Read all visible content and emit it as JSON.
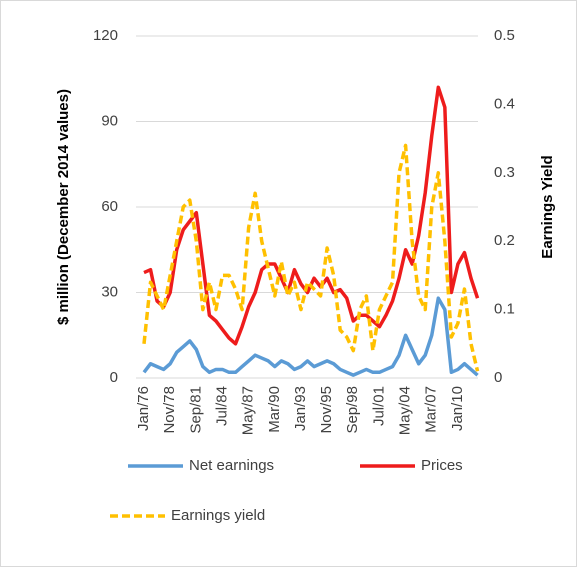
{
  "chart_data": {
    "type": "line",
    "y_label": "$ million (December 2014 values)",
    "y2_label": "Earnings Yield",
    "categories": [
      "Jan/76",
      null,
      null,
      null,
      "Nov/78",
      null,
      null,
      null,
      "Sep/81",
      null,
      null,
      null,
      "Jul/84",
      null,
      null,
      null,
      "May/87",
      null,
      null,
      null,
      "Mar/90",
      null,
      null,
      null,
      "Jan/93",
      null,
      null,
      null,
      "Nov/95",
      null,
      null,
      null,
      "Sep/98",
      null,
      null,
      null,
      "Jul/01",
      null,
      null,
      null,
      "May/04",
      null,
      null,
      null,
      "Mar/07",
      null,
      null,
      null,
      "Jan/10",
      null,
      null,
      null
    ],
    "series": [
      {
        "name": "Net earnings",
        "color": "#5b9bd5",
        "values": [
          2,
          5,
          4,
          3,
          5,
          9,
          11,
          13,
          10,
          4,
          2,
          3,
          3,
          2,
          2,
          4,
          6,
          8,
          7,
          6,
          4,
          6,
          5,
          3,
          4,
          6,
          4,
          5,
          6,
          5,
          3,
          2,
          1,
          2,
          3,
          2,
          2,
          3,
          4,
          8,
          15,
          10,
          5,
          8,
          15,
          28,
          24,
          2,
          3,
          5,
          3,
          1
        ]
      },
      {
        "name": "Prices",
        "color": "#ee1c1c",
        "values": [
          37,
          38,
          27,
          25,
          30,
          45,
          52,
          55,
          58,
          40,
          22,
          20,
          17,
          14,
          12,
          18,
          25,
          30,
          38,
          40,
          40,
          35,
          30,
          38,
          33,
          30,
          35,
          32,
          35,
          30,
          31,
          28,
          20,
          22,
          22,
          20,
          18,
          22,
          27,
          35,
          45,
          40,
          50,
          65,
          85,
          102,
          95,
          30,
          40,
          44,
          35,
          28
        ]
      },
      {
        "name": "Earnings yield",
        "color": "#ffc000",
        "dashed": true,
        "axis": "y2",
        "values": [
          0.05,
          0.14,
          0.12,
          0.1,
          0.15,
          0.2,
          0.25,
          0.26,
          0.2,
          0.1,
          0.14,
          0.1,
          0.15,
          0.15,
          0.13,
          0.1,
          0.22,
          0.27,
          0.2,
          0.16,
          0.12,
          0.17,
          0.12,
          0.14,
          0.1,
          0.14,
          0.13,
          0.12,
          0.19,
          0.15,
          0.07,
          0.06,
          0.04,
          0.1,
          0.12,
          0.04,
          0.1,
          0.12,
          0.14,
          0.3,
          0.34,
          0.2,
          0.12,
          0.1,
          0.25,
          0.3,
          0.2,
          0.06,
          0.08,
          0.13,
          0.05,
          0.01
        ]
      }
    ],
    "ylim": [
      0,
      120
    ],
    "yticks": [
      0,
      30,
      60,
      90,
      120
    ],
    "y2lim": [
      0,
      0.5
    ],
    "y2ticks": [
      0,
      0.1,
      0.2,
      0.3,
      0.4,
      0.5
    ],
    "grid": true,
    "legend": "bottom"
  }
}
